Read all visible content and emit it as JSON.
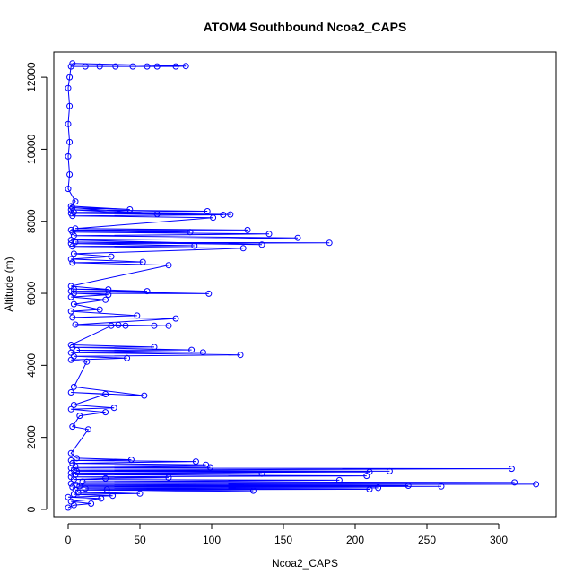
{
  "chart_data": {
    "type": "scatter",
    "title": "ATOM4 Southbound Ncoa2_CAPS",
    "xlabel": "Ncoa2_CAPS",
    "ylabel": "Altitude (m)",
    "xlim": [
      -10,
      340
    ],
    "ylim": [
      -200,
      12700
    ],
    "x_ticks": [
      0,
      50,
      100,
      150,
      200,
      250,
      300
    ],
    "y_ticks": [
      0,
      2000,
      4000,
      6000,
      8000,
      10000,
      12000
    ],
    "x_tick_labels": [
      "0",
      "50",
      "100",
      "150",
      "200",
      "250",
      "300"
    ],
    "y_tick_labels": [
      "0",
      "2000",
      "4000",
      "6000",
      "8000",
      "10000",
      "12000"
    ],
    "grid": false,
    "legend": "none",
    "series": [
      {
        "color": "#0000ff",
        "marker": "open-circle",
        "connected": true,
        "points": [
          [
            0,
            50
          ],
          [
            4,
            120
          ],
          [
            16,
            160
          ],
          [
            2,
            220
          ],
          [
            23,
            300
          ],
          [
            0,
            340
          ],
          [
            31,
            380
          ],
          [
            4,
            420
          ],
          [
            50,
            440
          ],
          [
            7,
            470
          ],
          [
            129,
            520
          ],
          [
            5,
            540
          ],
          [
            27,
            550
          ],
          [
            210,
            560
          ],
          [
            12,
            580
          ],
          [
            216,
            600
          ],
          [
            3,
            620
          ],
          [
            260,
            640
          ],
          [
            8,
            650
          ],
          [
            237,
            660
          ],
          [
            6,
            680
          ],
          [
            326,
            700
          ],
          [
            2,
            720
          ],
          [
            311,
            750
          ],
          [
            10,
            770
          ],
          [
            189,
            810
          ],
          [
            4,
            830
          ],
          [
            26,
            860
          ],
          [
            70,
            880
          ],
          [
            2,
            900
          ],
          [
            208,
            930
          ],
          [
            5,
            960
          ],
          [
            135,
            990
          ],
          [
            2,
            1010
          ],
          [
            210,
            1040
          ],
          [
            6,
            1060
          ],
          [
            224,
            1060
          ],
          [
            4,
            1090
          ],
          [
            309,
            1130
          ],
          [
            2,
            1150
          ],
          [
            99,
            1170
          ],
          [
            5,
            1200
          ],
          [
            96,
            1240
          ],
          [
            3,
            1280
          ],
          [
            89,
            1330
          ],
          [
            2,
            1360
          ],
          [
            44,
            1380
          ],
          [
            6,
            1420
          ],
          [
            2,
            1560
          ],
          [
            14,
            2220
          ],
          [
            3,
            2300
          ],
          [
            8,
            2600
          ],
          [
            26,
            2700
          ],
          [
            2,
            2780
          ],
          [
            32,
            2820
          ],
          [
            4,
            2900
          ],
          [
            26,
            3200
          ],
          [
            2,
            3250
          ],
          [
            53,
            3160
          ],
          [
            4,
            3400
          ],
          [
            13,
            4100
          ],
          [
            2,
            4150
          ],
          [
            41,
            4200
          ],
          [
            4,
            4250
          ],
          [
            120,
            4290
          ],
          [
            2,
            4350
          ],
          [
            94,
            4360
          ],
          [
            6,
            4420
          ],
          [
            86,
            4430
          ],
          [
            3,
            4500
          ],
          [
            60,
            4510
          ],
          [
            2,
            4570
          ],
          [
            30,
            5100
          ],
          [
            40,
            5100
          ],
          [
            60,
            5100
          ],
          [
            70,
            5100
          ],
          [
            35,
            5120
          ],
          [
            5,
            5130
          ],
          [
            75,
            5300
          ],
          [
            3,
            5330
          ],
          [
            48,
            5380
          ],
          [
            2,
            5500
          ],
          [
            22,
            5550
          ],
          [
            4,
            5700
          ],
          [
            26,
            5820
          ],
          [
            2,
            5900
          ],
          [
            28,
            5960
          ],
          [
            4,
            6000
          ],
          [
            98,
            5990
          ],
          [
            2,
            6060
          ],
          [
            55,
            6060
          ],
          [
            4,
            6120
          ],
          [
            28,
            6110
          ],
          [
            2,
            6200
          ],
          [
            70,
            6780
          ],
          [
            3,
            6850
          ],
          [
            52,
            6870
          ],
          [
            2,
            6950
          ],
          [
            30,
            7020
          ],
          [
            4,
            7100
          ],
          [
            122,
            7250
          ],
          [
            3,
            7300
          ],
          [
            88,
            7320
          ],
          [
            2,
            7380
          ],
          [
            182,
            7400
          ],
          [
            5,
            7420
          ],
          [
            135,
            7350
          ],
          [
            2,
            7480
          ],
          [
            160,
            7540
          ],
          [
            4,
            7600
          ],
          [
            140,
            7650
          ],
          [
            3,
            7700
          ],
          [
            85,
            7700
          ],
          [
            2,
            7760
          ],
          [
            125,
            7760
          ],
          [
            5,
            7800
          ],
          [
            101,
            8100
          ],
          [
            3,
            8150
          ],
          [
            108,
            8180
          ],
          [
            2,
            8220
          ],
          [
            113,
            8190
          ],
          [
            4,
            8250
          ],
          [
            97,
            8280
          ],
          [
            2,
            8320
          ],
          [
            62,
            8200
          ],
          [
            3,
            8380
          ],
          [
            43,
            8330
          ],
          [
            2,
            8420
          ],
          [
            5,
            8550
          ],
          [
            0,
            8900
          ],
          [
            1,
            9300
          ],
          [
            0,
            9800
          ],
          [
            1,
            10200
          ],
          [
            0,
            10700
          ],
          [
            1,
            11200
          ],
          [
            0,
            11700
          ],
          [
            1,
            12000
          ],
          [
            2,
            12300
          ],
          [
            12,
            12300
          ],
          [
            22,
            12300
          ],
          [
            33,
            12300
          ],
          [
            45,
            12300
          ],
          [
            55,
            12300
          ],
          [
            62,
            12300
          ],
          [
            75,
            12300
          ],
          [
            82,
            12310
          ],
          [
            3,
            12380
          ]
        ]
      }
    ]
  }
}
